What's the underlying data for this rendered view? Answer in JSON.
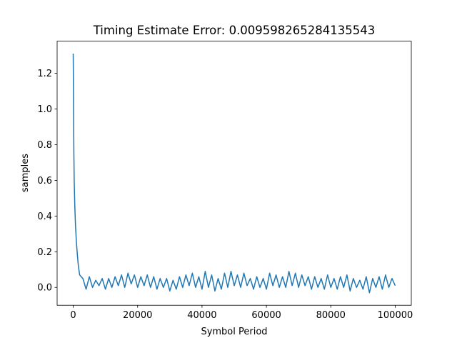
{
  "chart_data": {
    "type": "line",
    "title": "Timing Estimate Error: 0.009598265284135543",
    "x_label": "Symbol Period",
    "y_label": "samples",
    "color": "#1f77b4",
    "x": [
      0,
      100,
      200,
      300,
      500,
      700,
      1000,
      1300,
      1600,
      2000,
      3000,
      4000,
      5000,
      6000,
      7000,
      8000,
      9000,
      10000,
      11000,
      12000,
      13000,
      14000,
      15000,
      16000,
      17000,
      18000,
      19000,
      20000,
      21000,
      22000,
      23000,
      24000,
      25000,
      26000,
      27000,
      28000,
      29000,
      30000,
      31000,
      32000,
      33000,
      34000,
      35000,
      36000,
      37000,
      38000,
      39000,
      40000,
      41000,
      42000,
      43000,
      44000,
      45000,
      46000,
      47000,
      48000,
      49000,
      50000,
      51000,
      52000,
      53000,
      54000,
      55000,
      56000,
      57000,
      58000,
      59000,
      60000,
      61000,
      62000,
      63000,
      64000,
      65000,
      66000,
      67000,
      68000,
      69000,
      70000,
      71000,
      72000,
      73000,
      74000,
      75000,
      76000,
      77000,
      78000,
      79000,
      80000,
      81000,
      82000,
      83000,
      84000,
      85000,
      86000,
      87000,
      88000,
      89000,
      90000,
      91000,
      92000,
      93000,
      94000,
      95000,
      96000,
      97000,
      98000,
      99000,
      100000
    ],
    "values": [
      1.31,
      1.0,
      0.75,
      0.6,
      0.45,
      0.35,
      0.25,
      0.18,
      0.12,
      0.07,
      0.05,
      -0.01,
      0.06,
      0.0,
      0.04,
      0.01,
      0.05,
      -0.01,
      0.05,
      0.0,
      0.06,
      0.01,
      0.07,
      0.0,
      0.08,
      0.02,
      0.07,
      0.0,
      0.06,
      0.01,
      0.07,
      0.0,
      0.06,
      -0.01,
      0.05,
      0.0,
      0.05,
      -0.02,
      0.04,
      -0.01,
      0.06,
      0.0,
      0.07,
      0.01,
      0.08,
      0.0,
      0.06,
      -0.01,
      0.09,
      0.0,
      0.07,
      -0.02,
      0.05,
      -0.01,
      0.08,
      0.0,
      0.09,
      0.01,
      0.07,
      0.0,
      0.08,
      0.01,
      0.05,
      -0.01,
      0.06,
      0.0,
      0.05,
      -0.01,
      0.08,
      0.01,
      0.07,
      0.0,
      0.06,
      0.0,
      0.09,
      0.01,
      0.08,
      0.0,
      0.07,
      0.01,
      0.06,
      -0.01,
      0.06,
      0.0,
      0.05,
      -0.01,
      0.07,
      0.0,
      0.05,
      -0.01,
      0.06,
      0.0,
      0.07,
      -0.02,
      0.05,
      0.0,
      0.04,
      -0.01,
      0.06,
      -0.03,
      0.05,
      0.0,
      0.06,
      -0.01,
      0.07,
      0.0,
      0.05,
      0.01
    ],
    "xlim": [
      -5000,
      105000
    ],
    "xticks": [
      0,
      20000,
      40000,
      60000,
      80000,
      100000
    ],
    "ylim": [
      -0.1,
      1.38
    ],
    "yticks": [
      {
        "value": 0,
        "label": "0.0"
      },
      0.2,
      0.4,
      0.6,
      0.8,
      {
        "value": 1,
        "label": "1.0"
      },
      1.2
    ]
  }
}
